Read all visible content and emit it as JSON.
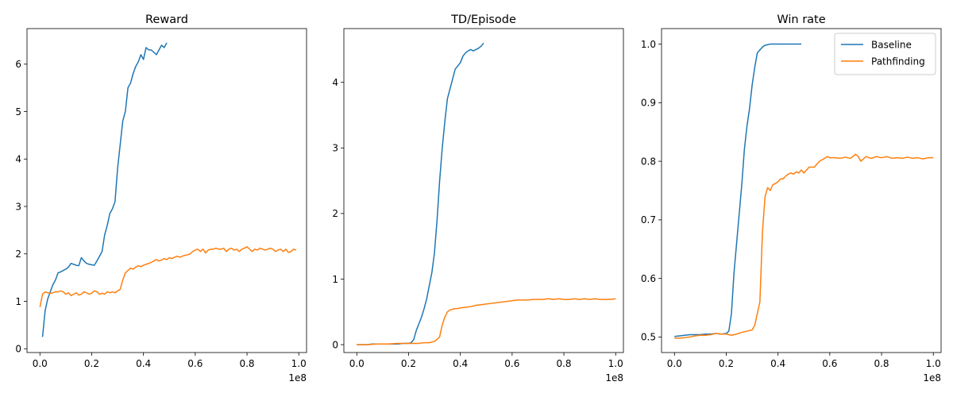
{
  "figure": {
    "colors": {
      "Baseline": "#1f77b4",
      "Pathfinding": "#ff7f0e"
    },
    "x_offset_label": "1e8"
  },
  "chart_data": [
    {
      "type": "line",
      "title": "Reward",
      "xlabel": "",
      "ylabel": "",
      "xlim": [
        -0.05,
        1.03
      ],
      "ylim": [
        -0.08,
        6.75
      ],
      "xticks": [
        0.0,
        0.2,
        0.4,
        0.6,
        0.8,
        1.0
      ],
      "xtick_labels": [
        "0.0",
        "0.2",
        "0.4",
        "0.6",
        "0.8",
        "1.0"
      ],
      "x_multiplier": "1e8",
      "yticks": [
        0,
        1,
        2,
        3,
        4,
        5,
        6
      ],
      "ytick_labels": [
        "0",
        "1",
        "2",
        "3",
        "4",
        "5",
        "6"
      ],
      "grid": false,
      "legend": null,
      "series": [
        {
          "color": "#1f77b4",
          "x": [
            0.01,
            0.02,
            0.03,
            0.04,
            0.05,
            0.06,
            0.07,
            0.08,
            0.09,
            0.1,
            0.11,
            0.12,
            0.13,
            0.14,
            0.15,
            0.16,
            0.17,
            0.18,
            0.19,
            0.2,
            0.21,
            0.22,
            0.23,
            0.24,
            0.25,
            0.26,
            0.27,
            0.28,
            0.29,
            0.3,
            0.31,
            0.32,
            0.33,
            0.34,
            0.35,
            0.36,
            0.37,
            0.38,
            0.39,
            0.4,
            0.41,
            0.42,
            0.43,
            0.44,
            0.45,
            0.46,
            0.47,
            0.48,
            0.49
          ],
          "y": [
            0.25,
            0.8,
            1.05,
            1.2,
            1.35,
            1.45,
            1.6,
            1.62,
            1.65,
            1.68,
            1.72,
            1.8,
            1.78,
            1.76,
            1.75,
            1.92,
            1.85,
            1.8,
            1.78,
            1.77,
            1.76,
            1.85,
            1.95,
            2.05,
            2.4,
            2.6,
            2.85,
            2.95,
            3.1,
            3.8,
            4.3,
            4.8,
            5.0,
            5.5,
            5.6,
            5.8,
            5.95,
            6.05,
            6.2,
            6.1,
            6.35,
            6.3,
            6.3,
            6.25,
            6.2,
            6.3,
            6.4,
            6.35,
            6.45
          ]
        },
        {
          "color": "#ff7f0e",
          "x": [
            0.0,
            0.01,
            0.02,
            0.03,
            0.04,
            0.05,
            0.06,
            0.07,
            0.08,
            0.09,
            0.1,
            0.11,
            0.12,
            0.13,
            0.14,
            0.15,
            0.16,
            0.17,
            0.18,
            0.19,
            0.2,
            0.21,
            0.22,
            0.23,
            0.24,
            0.25,
            0.26,
            0.27,
            0.28,
            0.29,
            0.3,
            0.31,
            0.32,
            0.33,
            0.34,
            0.35,
            0.36,
            0.37,
            0.38,
            0.39,
            0.4,
            0.41,
            0.42,
            0.43,
            0.44,
            0.45,
            0.46,
            0.47,
            0.48,
            0.49,
            0.5,
            0.51,
            0.52,
            0.53,
            0.54,
            0.55,
            0.56,
            0.57,
            0.58,
            0.59,
            0.6,
            0.61,
            0.62,
            0.63,
            0.64,
            0.65,
            0.66,
            0.67,
            0.68,
            0.69,
            0.7,
            0.71,
            0.72,
            0.73,
            0.74,
            0.75,
            0.76,
            0.77,
            0.78,
            0.79,
            0.8,
            0.81,
            0.82,
            0.83,
            0.84,
            0.85,
            0.86,
            0.87,
            0.88,
            0.89,
            0.9,
            0.91,
            0.92,
            0.93,
            0.94,
            0.95,
            0.96,
            0.97,
            0.98,
            0.99
          ],
          "y": [
            0.88,
            1.15,
            1.2,
            1.18,
            1.17,
            1.18,
            1.2,
            1.2,
            1.22,
            1.2,
            1.15,
            1.18,
            1.12,
            1.15,
            1.18,
            1.13,
            1.15,
            1.2,
            1.18,
            1.15,
            1.17,
            1.22,
            1.2,
            1.15,
            1.17,
            1.15,
            1.2,
            1.18,
            1.2,
            1.18,
            1.22,
            1.25,
            1.45,
            1.6,
            1.65,
            1.7,
            1.68,
            1.72,
            1.75,
            1.73,
            1.76,
            1.78,
            1.8,
            1.82,
            1.85,
            1.88,
            1.85,
            1.87,
            1.9,
            1.88,
            1.92,
            1.9,
            1.93,
            1.95,
            1.93,
            1.95,
            1.97,
            1.98,
            2.0,
            2.05,
            2.08,
            2.1,
            2.05,
            2.1,
            2.02,
            2.08,
            2.1,
            2.1,
            2.12,
            2.1,
            2.1,
            2.12,
            2.05,
            2.1,
            2.12,
            2.08,
            2.1,
            2.05,
            2.1,
            2.12,
            2.15,
            2.1,
            2.05,
            2.1,
            2.08,
            2.12,
            2.1,
            2.08,
            2.1,
            2.12,
            2.1,
            2.05,
            2.08,
            2.1,
            2.05,
            2.1,
            2.03,
            2.05,
            2.1,
            2.08
          ]
        }
      ]
    },
    {
      "type": "line",
      "title": "TD/Episode",
      "xlabel": "",
      "ylabel": "",
      "xlim": [
        -0.05,
        1.03
      ],
      "ylim": [
        -0.12,
        4.82
      ],
      "xticks": [
        0.0,
        0.2,
        0.4,
        0.6,
        0.8,
        1.0
      ],
      "xtick_labels": [
        "0.0",
        "0.2",
        "0.4",
        "0.6",
        "0.8",
        "1.0"
      ],
      "x_multiplier": "1e8",
      "yticks": [
        0,
        1,
        2,
        3,
        4
      ],
      "ytick_labels": [
        "0",
        "1",
        "2",
        "3",
        "4"
      ],
      "grid": false,
      "legend": null,
      "series": [
        {
          "color": "#1f77b4",
          "x": [
            0.0,
            0.02,
            0.04,
            0.06,
            0.08,
            0.1,
            0.12,
            0.14,
            0.16,
            0.18,
            0.2,
            0.21,
            0.22,
            0.23,
            0.24,
            0.25,
            0.26,
            0.27,
            0.28,
            0.29,
            0.3,
            0.31,
            0.32,
            0.33,
            0.34,
            0.35,
            0.36,
            0.37,
            0.38,
            0.39,
            0.4,
            0.41,
            0.42,
            0.43,
            0.44,
            0.45,
            0.46,
            0.47,
            0.48,
            0.49
          ],
          "y": [
            0.0,
            0.0,
            0.0,
            0.01,
            0.01,
            0.01,
            0.01,
            0.01,
            0.01,
            0.02,
            0.02,
            0.03,
            0.08,
            0.22,
            0.32,
            0.42,
            0.55,
            0.7,
            0.9,
            1.1,
            1.4,
            1.9,
            2.5,
            3.0,
            3.4,
            3.75,
            3.9,
            4.05,
            4.2,
            4.25,
            4.3,
            4.4,
            4.45,
            4.48,
            4.5,
            4.48,
            4.5,
            4.52,
            4.55,
            4.6
          ]
        },
        {
          "color": "#ff7f0e",
          "x": [
            0.0,
            0.04,
            0.08,
            0.12,
            0.16,
            0.2,
            0.24,
            0.26,
            0.28,
            0.3,
            0.31,
            0.32,
            0.33,
            0.34,
            0.35,
            0.36,
            0.37,
            0.38,
            0.39,
            0.4,
            0.42,
            0.44,
            0.46,
            0.48,
            0.5,
            0.52,
            0.54,
            0.56,
            0.58,
            0.6,
            0.62,
            0.64,
            0.66,
            0.68,
            0.7,
            0.72,
            0.74,
            0.76,
            0.78,
            0.8,
            0.82,
            0.84,
            0.86,
            0.88,
            0.9,
            0.92,
            0.94,
            0.96,
            0.98,
            1.0
          ],
          "y": [
            0.0,
            0.0,
            0.01,
            0.01,
            0.02,
            0.02,
            0.02,
            0.03,
            0.03,
            0.05,
            0.08,
            0.12,
            0.3,
            0.42,
            0.5,
            0.53,
            0.54,
            0.55,
            0.55,
            0.56,
            0.57,
            0.58,
            0.6,
            0.61,
            0.62,
            0.63,
            0.64,
            0.65,
            0.66,
            0.67,
            0.68,
            0.68,
            0.68,
            0.69,
            0.69,
            0.69,
            0.7,
            0.69,
            0.7,
            0.69,
            0.69,
            0.7,
            0.69,
            0.7,
            0.69,
            0.7,
            0.69,
            0.69,
            0.69,
            0.7
          ]
        }
      ]
    },
    {
      "type": "line",
      "title": "Win rate",
      "xlabel": "",
      "ylabel": "",
      "xlim": [
        -0.05,
        1.03
      ],
      "ylim": [
        0.4735,
        1.0265
      ],
      "xticks": [
        0.0,
        0.2,
        0.4,
        0.6,
        0.8,
        1.0
      ],
      "xtick_labels": [
        "0.0",
        "0.2",
        "0.4",
        "0.6",
        "0.8",
        "1.0"
      ],
      "x_multiplier": "1e8",
      "yticks": [
        0.5,
        0.6,
        0.7,
        0.8,
        0.9,
        1.0
      ],
      "ytick_labels": [
        "0.5",
        "0.6",
        "0.7",
        "0.8",
        "0.9",
        "1.0"
      ],
      "grid": false,
      "legend": "top-right",
      "series": [
        {
          "name": "Baseline",
          "color": "#1f77b4",
          "x": [
            0.0,
            0.02,
            0.04,
            0.06,
            0.08,
            0.1,
            0.12,
            0.14,
            0.16,
            0.18,
            0.2,
            0.21,
            0.22,
            0.23,
            0.24,
            0.25,
            0.26,
            0.27,
            0.28,
            0.29,
            0.3,
            0.31,
            0.32,
            0.33,
            0.34,
            0.35,
            0.36,
            0.37,
            0.38,
            0.39,
            0.4,
            0.42,
            0.44,
            0.46,
            0.48,
            0.49
          ],
          "y": [
            0.501,
            0.502,
            0.503,
            0.504,
            0.504,
            0.504,
            0.505,
            0.505,
            0.506,
            0.505,
            0.506,
            0.51,
            0.54,
            0.61,
            0.66,
            0.71,
            0.76,
            0.82,
            0.86,
            0.89,
            0.93,
            0.96,
            0.985,
            0.99,
            0.995,
            0.998,
            0.999,
            1.0,
            1.0,
            1.0,
            1.0,
            1.0,
            1.0,
            1.0,
            1.0,
            1.0
          ]
        },
        {
          "name": "Pathfinding",
          "color": "#ff7f0e",
          "x": [
            0.0,
            0.02,
            0.04,
            0.06,
            0.08,
            0.1,
            0.12,
            0.14,
            0.16,
            0.18,
            0.2,
            0.22,
            0.24,
            0.26,
            0.28,
            0.3,
            0.31,
            0.32,
            0.33,
            0.34,
            0.35,
            0.36,
            0.37,
            0.38,
            0.39,
            0.4,
            0.41,
            0.42,
            0.43,
            0.44,
            0.45,
            0.46,
            0.47,
            0.48,
            0.49,
            0.5,
            0.52,
            0.54,
            0.56,
            0.58,
            0.59,
            0.6,
            0.62,
            0.64,
            0.66,
            0.68,
            0.7,
            0.71,
            0.72,
            0.74,
            0.76,
            0.78,
            0.8,
            0.82,
            0.84,
            0.86,
            0.88,
            0.9,
            0.92,
            0.94,
            0.96,
            0.98,
            1.0
          ],
          "y": [
            0.498,
            0.498,
            0.499,
            0.5,
            0.502,
            0.503,
            0.503,
            0.504,
            0.506,
            0.505,
            0.505,
            0.503,
            0.505,
            0.508,
            0.51,
            0.512,
            0.52,
            0.54,
            0.56,
            0.68,
            0.74,
            0.755,
            0.75,
            0.76,
            0.762,
            0.765,
            0.77,
            0.77,
            0.775,
            0.778,
            0.78,
            0.778,
            0.782,
            0.78,
            0.785,
            0.78,
            0.79,
            0.79,
            0.8,
            0.805,
            0.808,
            0.806,
            0.806,
            0.805,
            0.807,
            0.805,
            0.812,
            0.808,
            0.8,
            0.808,
            0.805,
            0.808,
            0.806,
            0.808,
            0.805,
            0.806,
            0.805,
            0.807,
            0.805,
            0.806,
            0.804,
            0.806,
            0.806
          ]
        }
      ]
    }
  ]
}
